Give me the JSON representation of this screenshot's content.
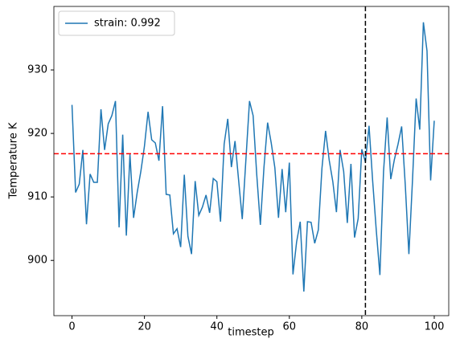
{
  "chart_data": {
    "type": "line",
    "xlabel": "timestep",
    "ylabel": "Temperature K",
    "x": [
      0,
      1,
      2,
      3,
      4,
      5,
      6,
      7,
      8,
      9,
      10,
      11,
      12,
      13,
      14,
      15,
      16,
      17,
      18,
      19,
      20,
      21,
      22,
      23,
      24,
      25,
      26,
      27,
      28,
      29,
      30,
      31,
      32,
      33,
      34,
      35,
      36,
      37,
      38,
      39,
      40,
      41,
      42,
      43,
      44,
      45,
      46,
      47,
      48,
      49,
      50,
      51,
      52,
      53,
      54,
      55,
      56,
      57,
      58,
      59,
      60,
      61,
      62,
      63,
      64,
      65,
      66,
      67,
      68,
      69,
      70,
      71,
      72,
      73,
      74,
      75,
      76,
      77,
      78,
      79,
      80,
      81,
      82,
      83,
      84,
      85,
      86,
      87,
      88,
      89,
      90,
      91,
      92,
      93,
      94,
      95,
      96,
      97,
      98,
      99,
      100
    ],
    "series": [
      {
        "name": "strain: 0.992",
        "color": "#1f77b4",
        "values": [
          924.5,
          910.7,
          912,
          917.4,
          905.7,
          913.6,
          912.3,
          912.3,
          923.8,
          917.4,
          921.5,
          922.8,
          925.1,
          905.2,
          919.8,
          903.9,
          916.7,
          906.7,
          910.7,
          914,
          918,
          923.4,
          919,
          918.5,
          915.7,
          924.3,
          910.4,
          910.3,
          904.2,
          905,
          902.1,
          913.5,
          903.8,
          901,
          912.5,
          907.1,
          908.4,
          910.3,
          907.5,
          912.9,
          912.4,
          906.1,
          918.3,
          922.3,
          914.7,
          918.8,
          912.6,
          906.5,
          915.8,
          925.1,
          922.8,
          913.5,
          905.6,
          914.7,
          921.7,
          918.5,
          914.6,
          906.7,
          914.4,
          907.6,
          915.4,
          897.8,
          902.9,
          906.1,
          895.1,
          906.1,
          906,
          902.7,
          904.8,
          914.5,
          920.4,
          915.8,
          912.4,
          907.6,
          917.4,
          914,
          905.9,
          915.2,
          903.6,
          906.6,
          917.5,
          915.5,
          921.2,
          912.5,
          904.7,
          897.7,
          914,
          922.5,
          912.8,
          915.9,
          918.3,
          921.1,
          911.9,
          901,
          912.7,
          925.5,
          920.6,
          937.5,
          933,
          912.6,
          922
        ]
      }
    ],
    "hline": {
      "value": 916.8,
      "color": "#ff0000"
    },
    "vline": {
      "value": 81,
      "color": "#000000"
    },
    "xlim": [
      -5,
      104
    ],
    "ylim": [
      891.3,
      940
    ],
    "xticks": [
      0,
      20,
      40,
      60,
      80,
      100
    ],
    "yticks": [
      900,
      910,
      920,
      930
    ],
    "legend": "upper left"
  }
}
